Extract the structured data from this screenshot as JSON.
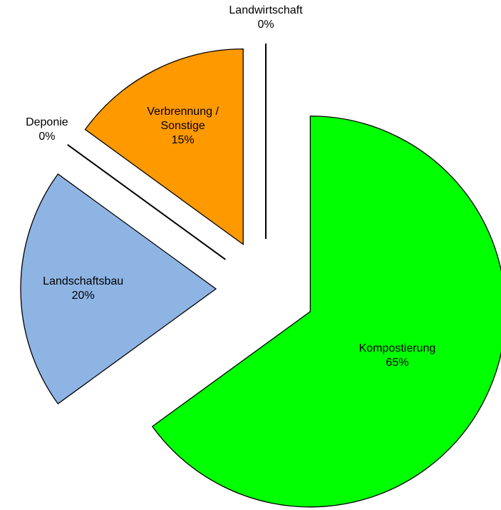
{
  "chart_data": {
    "type": "pie",
    "categories": [
      "Kompostierung",
      "Landschaftsbau",
      "Deponie",
      "Verbrennung / Sonstige",
      "Landwirtschaft"
    ],
    "values": [
      65,
      20,
      0,
      15,
      0
    ],
    "value_labels": [
      "65%",
      "20%",
      "0%",
      "15%",
      "0%"
    ],
    "colors": [
      "#00ff00",
      "#8eb4e3",
      "#ffffff",
      "#ff9900",
      "#ffffff"
    ],
    "exploded": true
  }
}
